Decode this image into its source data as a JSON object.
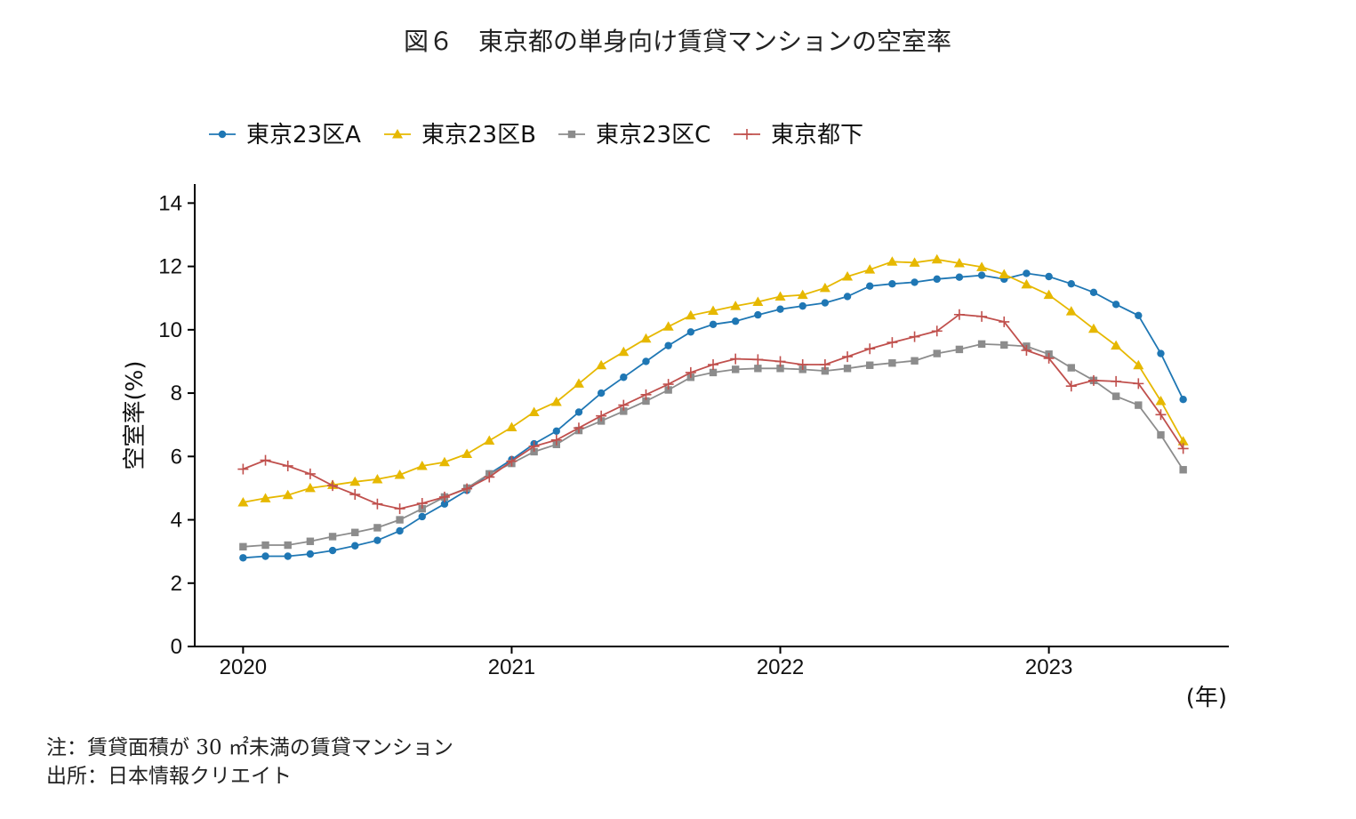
{
  "chart_data": {
    "type": "line",
    "title": "図６　東京都の単身向け賃貸マンションの空室率",
    "ylabel": "空室率(%)",
    "xlabel": "(年)",
    "ylim": [
      0,
      14.6
    ],
    "yticks": [
      0,
      2,
      4,
      6,
      8,
      10,
      12,
      14
    ],
    "xlim": [
      2019.82,
      2023.67
    ],
    "xticks": [
      2020,
      2021,
      2022,
      2023
    ],
    "xtick_labels": [
      "2020",
      "2021",
      "2022",
      "2023"
    ],
    "x_start": 2020,
    "x_step_months": 1,
    "legend_position": "top",
    "grid": false,
    "series": [
      {
        "name": "東京23区A",
        "color": "#1f77b4",
        "marker": "circle",
        "values": [
          2.8,
          2.85,
          2.85,
          2.92,
          3.03,
          3.18,
          3.35,
          3.65,
          4.1,
          4.5,
          4.93,
          5.45,
          5.9,
          6.4,
          6.8,
          7.4,
          8.0,
          8.5,
          9.0,
          9.5,
          9.93,
          10.17,
          10.27,
          10.47,
          10.65,
          10.75,
          10.85,
          11.05,
          11.38,
          11.45,
          11.5,
          11.6,
          11.66,
          11.72,
          11.6,
          11.78,
          11.68,
          11.45,
          11.18,
          10.8,
          10.45,
          9.25,
          7.8
        ]
      },
      {
        "name": "東京23区B",
        "color": "#e6b800",
        "marker": "triangle",
        "values": [
          4.55,
          4.68,
          4.78,
          5.0,
          5.1,
          5.2,
          5.28,
          5.42,
          5.7,
          5.82,
          6.08,
          6.5,
          6.92,
          7.4,
          7.72,
          8.3,
          8.88,
          9.3,
          9.72,
          10.1,
          10.45,
          10.6,
          10.75,
          10.88,
          11.05,
          11.1,
          11.32,
          11.68,
          11.9,
          12.15,
          12.12,
          12.22,
          12.1,
          11.98,
          11.75,
          11.43,
          11.1,
          10.58,
          10.03,
          9.5,
          8.88,
          7.75,
          6.48
        ]
      },
      {
        "name": "東京23区C",
        "color": "#8c8c8c",
        "marker": "square",
        "values": [
          3.15,
          3.2,
          3.2,
          3.32,
          3.47,
          3.6,
          3.75,
          4.0,
          4.35,
          4.72,
          5.0,
          5.45,
          5.78,
          6.15,
          6.38,
          6.82,
          7.12,
          7.43,
          7.75,
          8.1,
          8.5,
          8.65,
          8.75,
          8.78,
          8.78,
          8.75,
          8.7,
          8.78,
          8.88,
          8.95,
          9.02,
          9.25,
          9.38,
          9.55,
          9.52,
          9.48,
          9.23,
          8.8,
          8.4,
          7.9,
          7.62,
          6.68,
          5.58
        ]
      },
      {
        "name": "東京都下",
        "color": "#c0504d",
        "marker": "plus",
        "values": [
          5.6,
          5.88,
          5.7,
          5.45,
          5.08,
          4.8,
          4.5,
          4.35,
          4.52,
          4.72,
          4.98,
          5.35,
          5.85,
          6.32,
          6.52,
          6.9,
          7.28,
          7.62,
          7.95,
          8.28,
          8.65,
          8.9,
          9.08,
          9.06,
          9.0,
          8.9,
          8.9,
          9.15,
          9.4,
          9.6,
          9.78,
          9.96,
          10.48,
          10.42,
          10.25,
          9.35,
          9.1,
          8.22,
          8.4,
          8.37,
          8.3,
          7.32,
          6.25
        ]
      }
    ]
  },
  "notes": {
    "note1": "注：賃貸面積が 30 ㎡未満の賃貸マンション",
    "source": "出所：日本情報クリエイト"
  }
}
